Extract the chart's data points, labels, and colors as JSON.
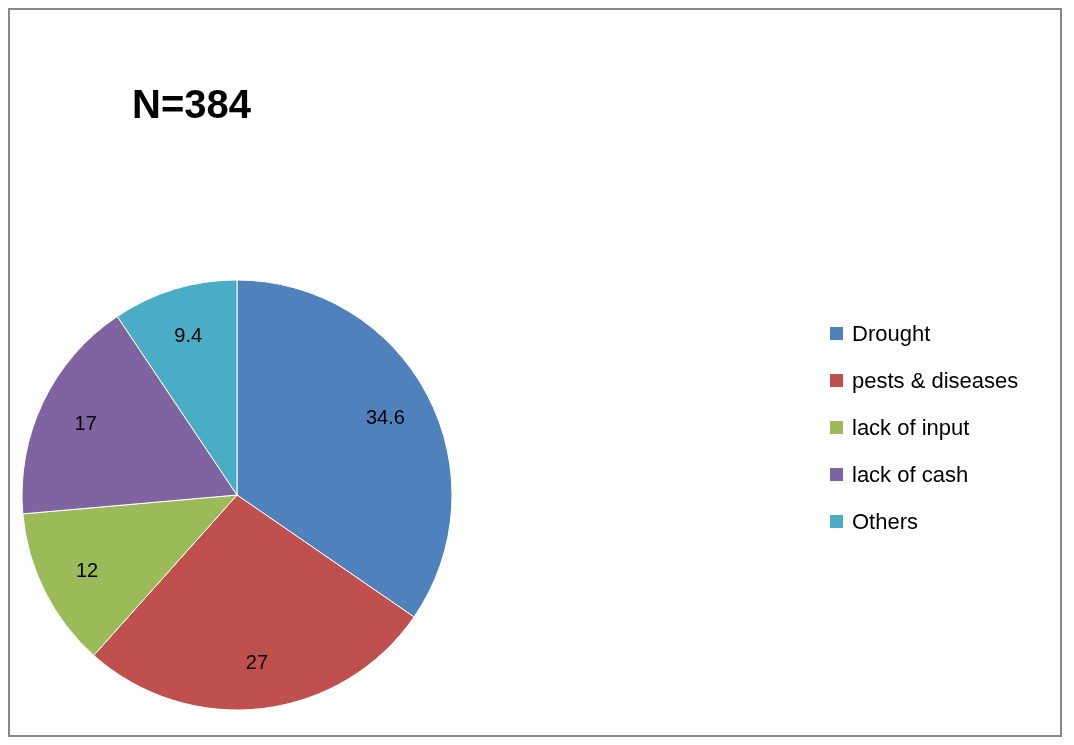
{
  "chart_data": {
    "type": "pie",
    "title": "N=384",
    "categories": [
      "Drought",
      "pests & diseases",
      "lack of input",
      "lack of cash",
      "Others"
    ],
    "values": [
      34.6,
      27,
      12,
      17,
      9.4
    ],
    "colors": [
      "#4f81bd",
      "#c0504d",
      "#9bbb59",
      "#8064a2",
      "#4bacc6"
    ],
    "data_labels": true,
    "legend": "right"
  }
}
